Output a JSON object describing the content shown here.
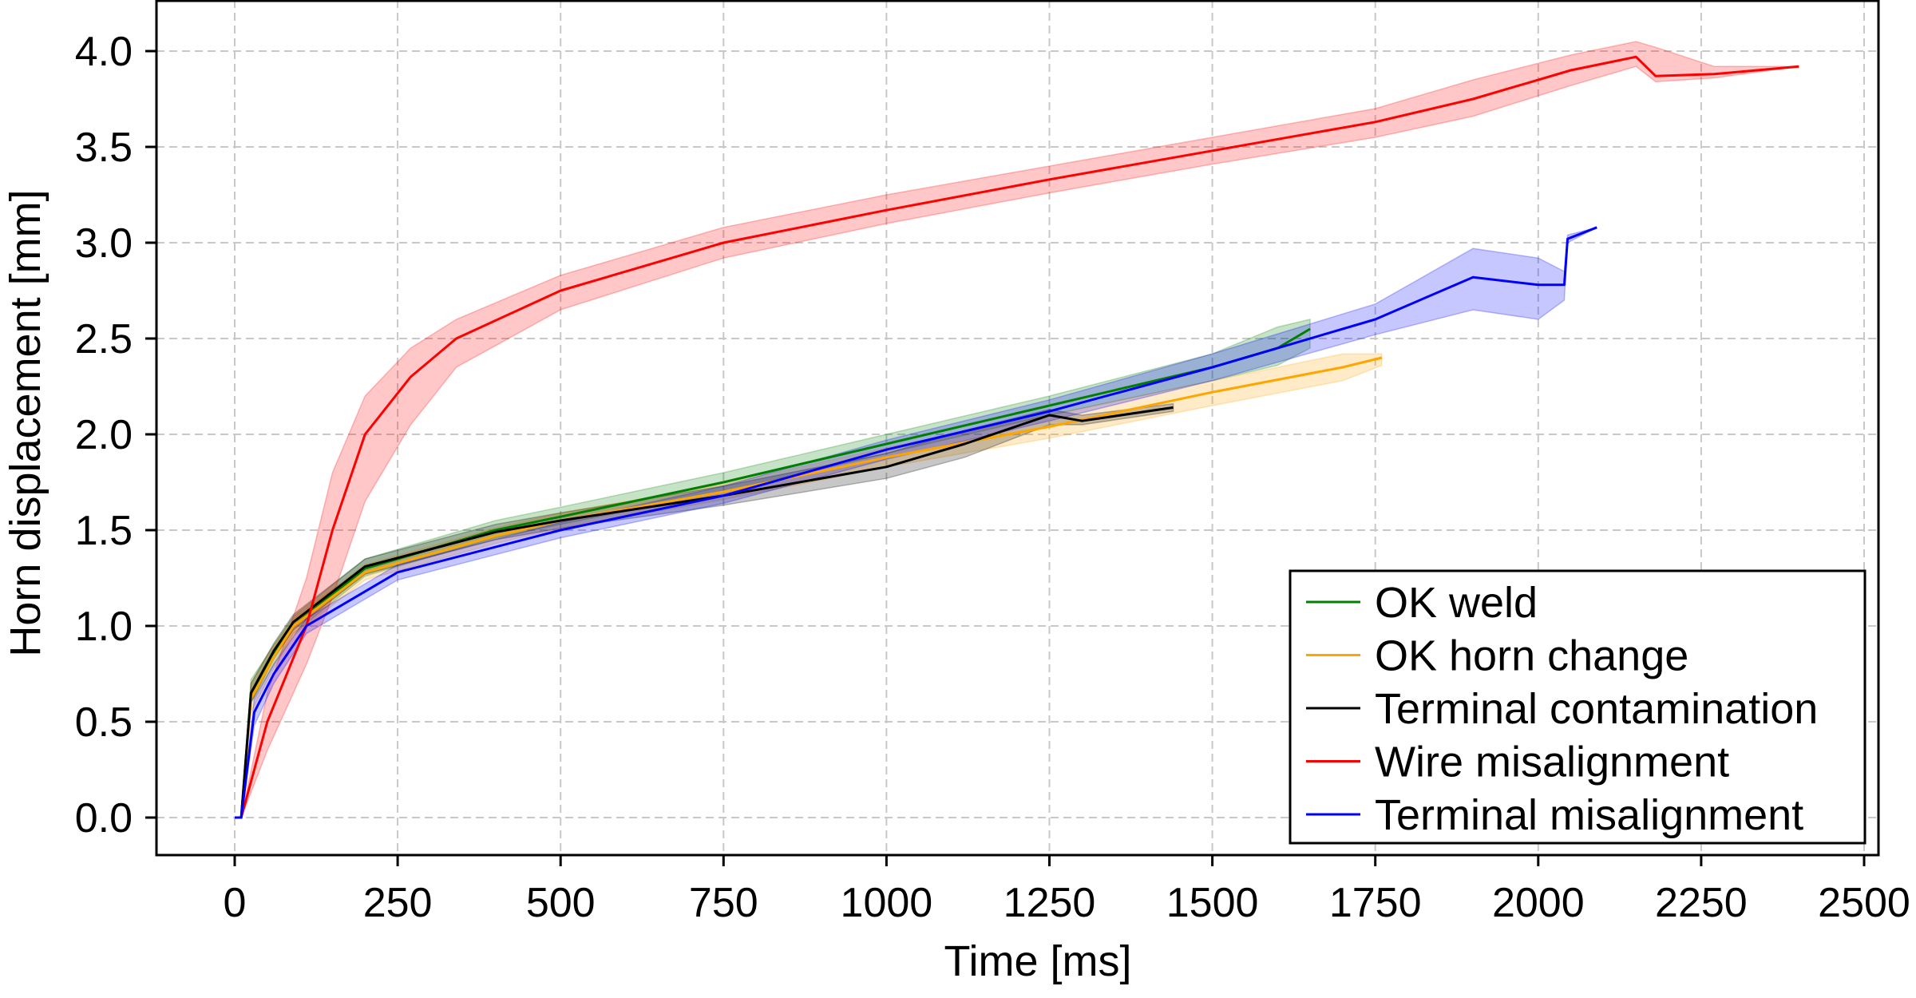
{
  "chart_data": {
    "type": "line",
    "title": "",
    "xlabel": "Time [ms]",
    "ylabel": "Horn displacement [mm]",
    "xlim": [
      -120,
      2520
    ],
    "ylim": [
      -0.2,
      4.25
    ],
    "xticks": [
      "0",
      "250",
      "500",
      "750",
      "1000",
      "1250",
      "1500",
      "1750",
      "2000",
      "2250",
      "2500"
    ],
    "yticks": [
      "0.0",
      "0.5",
      "1.0",
      "1.5",
      "2.0",
      "2.5",
      "3.0",
      "3.5",
      "4.0"
    ],
    "grid": true,
    "legend_position": "lower-right",
    "series": [
      {
        "name": "OK weld",
        "color": "#008000",
        "points": [
          [
            0,
            0,
            0,
            0
          ],
          [
            10,
            0,
            0,
            0
          ],
          [
            25,
            0.65,
            0.6,
            0.72
          ],
          [
            60,
            0.85,
            0.8,
            0.9
          ],
          [
            90,
            1.0,
            0.96,
            1.05
          ],
          [
            200,
            1.3,
            1.26,
            1.35
          ],
          [
            400,
            1.5,
            1.46,
            1.55
          ],
          [
            500,
            1.57,
            1.53,
            1.62
          ],
          [
            750,
            1.75,
            1.7,
            1.8
          ],
          [
            1000,
            1.95,
            1.9,
            2.0
          ],
          [
            1250,
            2.15,
            2.1,
            2.2
          ],
          [
            1500,
            2.35,
            2.28,
            2.42
          ],
          [
            1600,
            2.45,
            2.36,
            2.56
          ],
          [
            1650,
            2.55,
            2.45,
            2.6
          ]
        ]
      },
      {
        "name": "OK horn change",
        "color": "#FFA500",
        "points": [
          [
            0,
            0,
            0,
            0
          ],
          [
            10,
            0,
            0,
            0
          ],
          [
            25,
            0.62,
            0.55,
            0.7
          ],
          [
            60,
            0.84,
            0.78,
            0.9
          ],
          [
            90,
            1.0,
            0.95,
            1.04
          ],
          [
            200,
            1.28,
            1.24,
            1.32
          ],
          [
            400,
            1.47,
            1.43,
            1.51
          ],
          [
            500,
            1.55,
            1.51,
            1.59
          ],
          [
            750,
            1.7,
            1.66,
            1.74
          ],
          [
            1000,
            1.88,
            1.83,
            1.93
          ],
          [
            1250,
            2.04,
            1.98,
            2.1
          ],
          [
            1500,
            2.22,
            2.15,
            2.28
          ],
          [
            1700,
            2.35,
            2.28,
            2.42
          ],
          [
            1760,
            2.4,
            2.36,
            2.42
          ]
        ]
      },
      {
        "name": "Terminal contamination",
        "color": "#000000",
        "points": [
          [
            0,
            0,
            0,
            0
          ],
          [
            10,
            0,
            0,
            0
          ],
          [
            25,
            0.65,
            0.6,
            0.7
          ],
          [
            60,
            0.87,
            0.83,
            0.91
          ],
          [
            90,
            1.02,
            0.98,
            1.06
          ],
          [
            200,
            1.31,
            1.27,
            1.35
          ],
          [
            400,
            1.49,
            1.45,
            1.53
          ],
          [
            500,
            1.55,
            1.51,
            1.59
          ],
          [
            750,
            1.68,
            1.63,
            1.73
          ],
          [
            1000,
            1.83,
            1.77,
            1.9
          ],
          [
            1120,
            1.95,
            1.88,
            2.02
          ],
          [
            1250,
            2.1,
            2.05,
            2.13
          ],
          [
            1300,
            2.07,
            2.05,
            2.1
          ],
          [
            1440,
            2.14,
            2.12,
            2.16
          ]
        ]
      },
      {
        "name": "Wire misalignment",
        "color": "#FF0000",
        "points": [
          [
            0,
            0,
            0,
            0
          ],
          [
            10,
            0,
            0,
            0
          ],
          [
            50,
            0.5,
            0.35,
            0.65
          ],
          [
            110,
            1.0,
            0.8,
            1.25
          ],
          [
            150,
            1.5,
            1.15,
            1.8
          ],
          [
            200,
            2.0,
            1.65,
            2.2
          ],
          [
            270,
            2.3,
            2.05,
            2.45
          ],
          [
            340,
            2.5,
            2.35,
            2.6
          ],
          [
            500,
            2.75,
            2.65,
            2.83
          ],
          [
            750,
            3.0,
            2.92,
            3.08
          ],
          [
            1000,
            3.17,
            3.1,
            3.25
          ],
          [
            1250,
            3.33,
            3.26,
            3.4
          ],
          [
            1500,
            3.48,
            3.41,
            3.55
          ],
          [
            1750,
            3.63,
            3.55,
            3.7
          ],
          [
            1900,
            3.75,
            3.66,
            3.85
          ],
          [
            2050,
            3.9,
            3.82,
            3.98
          ],
          [
            2150,
            3.97,
            3.92,
            4.05
          ],
          [
            2180,
            3.87,
            3.84,
            4.02
          ],
          [
            2270,
            3.88,
            3.86,
            3.92
          ],
          [
            2400,
            3.92,
            3.92,
            3.92
          ]
        ]
      },
      {
        "name": "Terminal misalignment",
        "color": "#0000FF",
        "points": [
          [
            0,
            0,
            0,
            0
          ],
          [
            10,
            0,
            0,
            0
          ],
          [
            30,
            0.55,
            0.48,
            0.62
          ],
          [
            60,
            0.75,
            0.7,
            0.8
          ],
          [
            110,
            1.0,
            0.96,
            1.04
          ],
          [
            250,
            1.28,
            1.24,
            1.32
          ],
          [
            500,
            1.5,
            1.46,
            1.54
          ],
          [
            750,
            1.68,
            1.64,
            1.73
          ],
          [
            1000,
            1.92,
            1.87,
            1.97
          ],
          [
            1250,
            2.12,
            2.07,
            2.18
          ],
          [
            1500,
            2.35,
            2.28,
            2.42
          ],
          [
            1750,
            2.6,
            2.52,
            2.68
          ],
          [
            1900,
            2.82,
            2.65,
            2.97
          ],
          [
            2000,
            2.78,
            2.6,
            2.92
          ],
          [
            2040,
            2.78,
            2.7,
            2.85
          ],
          [
            2045,
            3.02,
            3.0,
            3.04
          ],
          [
            2090,
            3.08,
            3.08,
            3.08
          ]
        ]
      }
    ]
  }
}
